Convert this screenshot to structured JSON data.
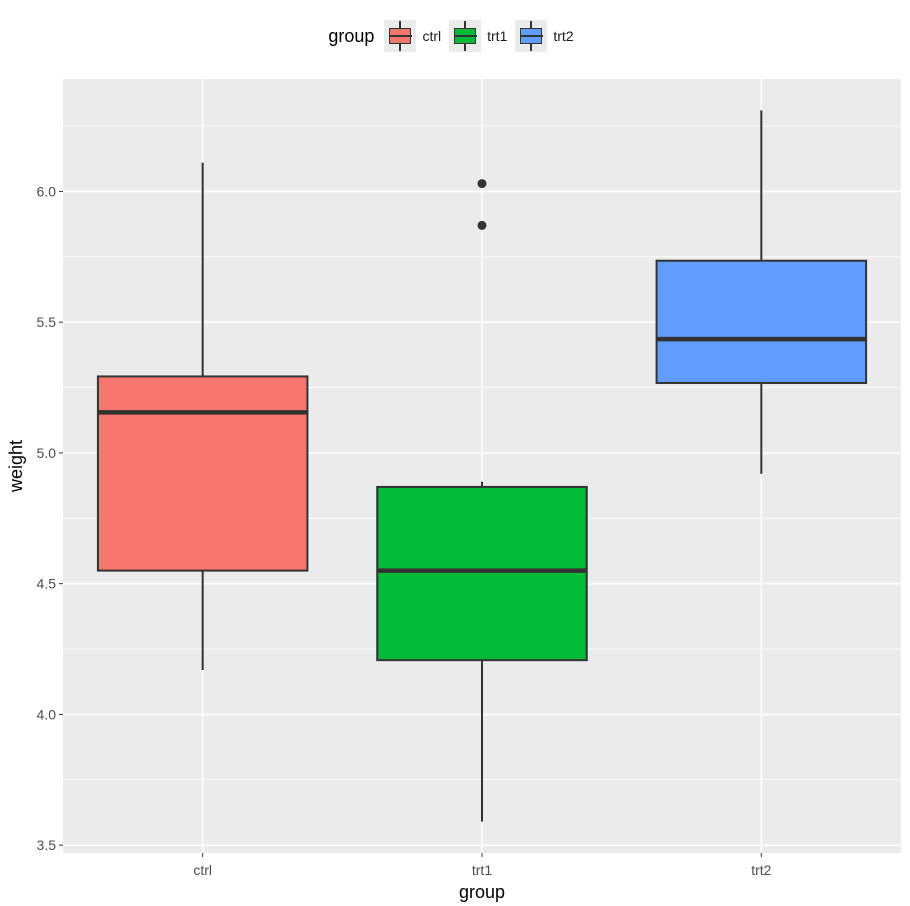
{
  "chart_data": {
    "type": "boxplot",
    "xlabel": "group",
    "ylabel": "weight",
    "ylim": [
      3.47,
      6.43
    ],
    "yticks": [
      3.5,
      4.0,
      4.5,
      5.0,
      5.5,
      6.0
    ],
    "ytick_labels": [
      "3.5",
      "4.0",
      "4.5",
      "5.0",
      "5.5",
      "6.0"
    ],
    "categories": [
      "ctrl",
      "trt1",
      "trt2"
    ],
    "legend": {
      "title": "group",
      "placement": "top"
    },
    "background": "#ebebeb",
    "grid": true,
    "series": [
      {
        "name": "ctrl",
        "color": "#F8766D",
        "min": 4.17,
        "q1": 4.55,
        "median": 5.155,
        "q3": 5.2925,
        "max": 6.11,
        "outliers": []
      },
      {
        "name": "trt1",
        "color": "#00BA38",
        "min": 3.59,
        "q1": 4.2075,
        "median": 4.55,
        "q3": 4.87,
        "max": 4.89,
        "outliers": [
          6.03,
          5.87
        ]
      },
      {
        "name": "trt2",
        "color": "#619CFF",
        "min": 4.92,
        "q1": 5.2675,
        "median": 5.435,
        "q3": 5.735,
        "max": 6.31,
        "outliers": []
      }
    ]
  }
}
